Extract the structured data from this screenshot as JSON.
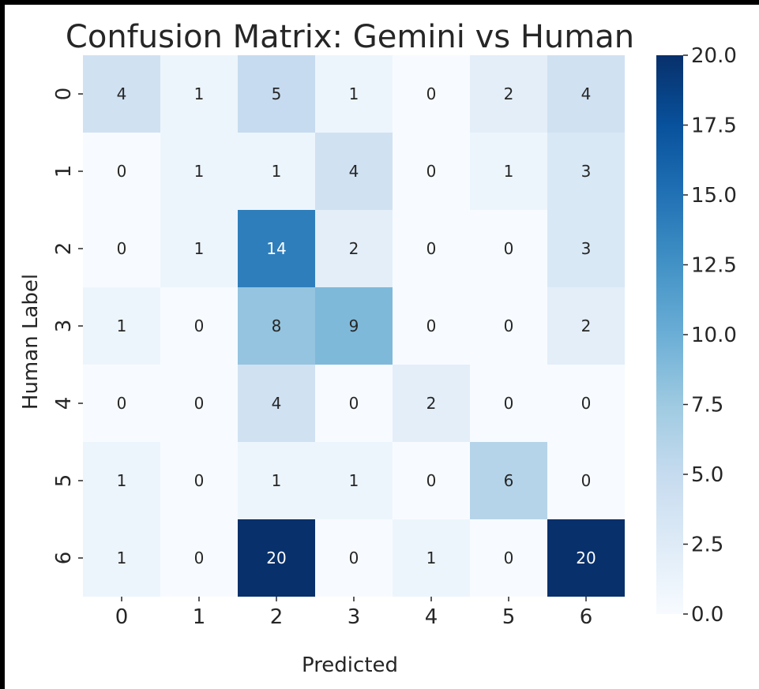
{
  "chart_data": {
    "type": "heatmap",
    "title": "Confusion Matrix: Gemini vs Human",
    "xlabel": "Predicted",
    "ylabel": "Human Label",
    "x_categories": [
      "0",
      "1",
      "2",
      "3",
      "4",
      "5",
      "6"
    ],
    "y_categories": [
      "0",
      "1",
      "2",
      "3",
      "4",
      "5",
      "6"
    ],
    "values": [
      [
        4,
        1,
        5,
        1,
        0,
        2,
        4
      ],
      [
        0,
        1,
        1,
        4,
        0,
        1,
        3
      ],
      [
        0,
        1,
        14,
        2,
        0,
        0,
        3
      ],
      [
        1,
        0,
        8,
        9,
        0,
        0,
        2
      ],
      [
        0,
        0,
        4,
        0,
        2,
        0,
        0
      ],
      [
        1,
        0,
        1,
        1,
        0,
        6,
        0
      ],
      [
        1,
        0,
        20,
        0,
        1,
        0,
        20
      ]
    ],
    "colormap": "Blues",
    "vmin": 0,
    "vmax": 20,
    "colorbar_ticks": [
      "0.0",
      "2.5",
      "5.0",
      "7.5",
      "10.0",
      "12.5",
      "15.0",
      "17.5",
      "20.0"
    ],
    "annotations": true
  }
}
